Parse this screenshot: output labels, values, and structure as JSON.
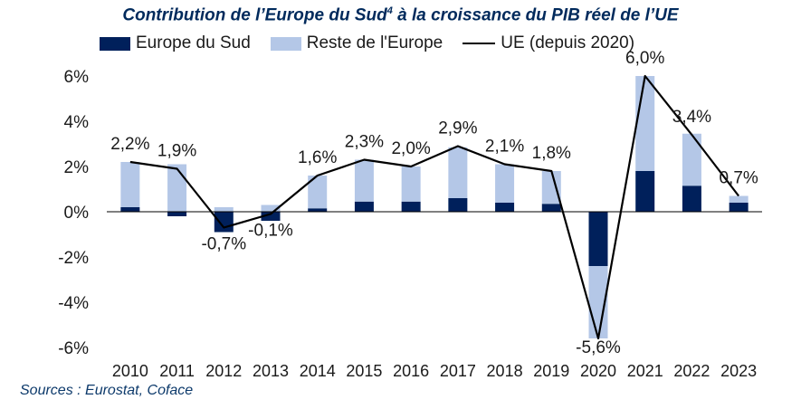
{
  "title_main": "Contribution de l’Europe du Sud",
  "title_sup": "4",
  "title_rest": " à la croissance du PIB réel de l’UE",
  "source": "Sources : Eurostat, Coface",
  "colors": {
    "south": "#00205b",
    "rest": "#b4c7e7",
    "line": "#000000",
    "title": "#002a5c"
  },
  "chart_data": {
    "type": "bar",
    "stacked": true,
    "categories": [
      "2010",
      "2011",
      "2012",
      "2013",
      "2014",
      "2015",
      "2016",
      "2017",
      "2018",
      "2019",
      "2020",
      "2021",
      "2022",
      "2023"
    ],
    "series": [
      {
        "name": "Europe du Sud",
        "type": "bar",
        "values": [
          0.2,
          -0.2,
          -0.9,
          -0.4,
          0.15,
          0.45,
          0.45,
          0.6,
          0.4,
          0.35,
          -2.4,
          1.8,
          1.15,
          0.4
        ]
      },
      {
        "name": "Reste de l'Europe",
        "type": "bar",
        "values": [
          2.0,
          2.1,
          0.2,
          0.3,
          1.45,
          1.85,
          1.55,
          2.25,
          1.7,
          1.45,
          -3.2,
          4.2,
          2.3,
          0.3
        ]
      },
      {
        "name": "UE (depuis 2020)",
        "type": "line",
        "values": [
          2.2,
          1.9,
          -0.7,
          -0.1,
          1.6,
          2.3,
          2.0,
          2.9,
          2.1,
          1.8,
          -5.6,
          6.0,
          3.4,
          0.7
        ]
      }
    ],
    "data_labels": [
      "2,2%",
      "1,9%",
      "-0,7%",
      "-0,1%",
      "1,6%",
      "2,3%",
      "2,0%",
      "2,9%",
      "2,1%",
      "1,8%",
      "-5,6%",
      "6,0%",
      "3,4%",
      "0,7%"
    ],
    "y_ticks": [
      6,
      4,
      2,
      0,
      -2,
      -4,
      -6
    ],
    "y_tick_labels": [
      "6%",
      "4%",
      "2%",
      "0%",
      "-2%",
      "-4%",
      "-6%"
    ],
    "ylim": [
      -6,
      6
    ],
    "grid": false,
    "legend_position": "top"
  }
}
